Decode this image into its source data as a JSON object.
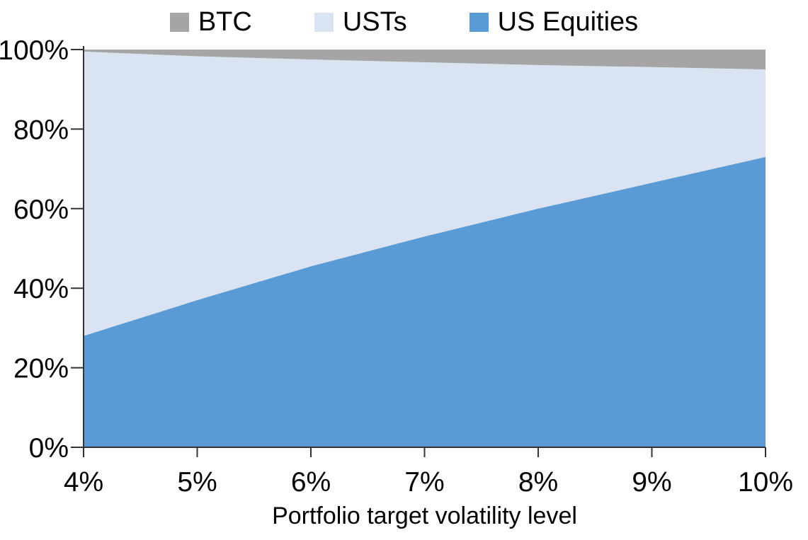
{
  "chart_data": {
    "type": "area",
    "stacked": true,
    "title": "",
    "xlabel": "Portfolio target volatility level",
    "ylabel": "",
    "x": [
      4,
      5,
      6,
      7,
      8,
      9,
      10
    ],
    "xlim": [
      4,
      10
    ],
    "ylim": [
      0,
      100
    ],
    "x_tick_labels": [
      "4%",
      "5%",
      "6%",
      "7%",
      "8%",
      "9%",
      "10%"
    ],
    "y_ticks": [
      0,
      20,
      40,
      60,
      80,
      100
    ],
    "y_tick_labels": [
      "0%",
      "20%",
      "40%",
      "60%",
      "80%",
      "100%"
    ],
    "grid": false,
    "legend_position": "top-center",
    "series": [
      {
        "name": "US Equities",
        "color": "#5B9BD5",
        "values": [
          28,
          37,
          45.5,
          53,
          60,
          66.5,
          73
        ]
      },
      {
        "name": "USTs",
        "color": "#DAE3F2",
        "values": [
          71.5,
          61.3,
          52,
          43.8,
          36.1,
          29.1,
          22
        ]
      },
      {
        "name": "BTC",
        "color": "#A5A5A5",
        "values": [
          0.5,
          1.7,
          2.5,
          3.2,
          3.9,
          4.4,
          5
        ]
      }
    ],
    "legend_order": [
      "BTC",
      "USTs",
      "US Equities"
    ],
    "axis_color": "#333333"
  }
}
